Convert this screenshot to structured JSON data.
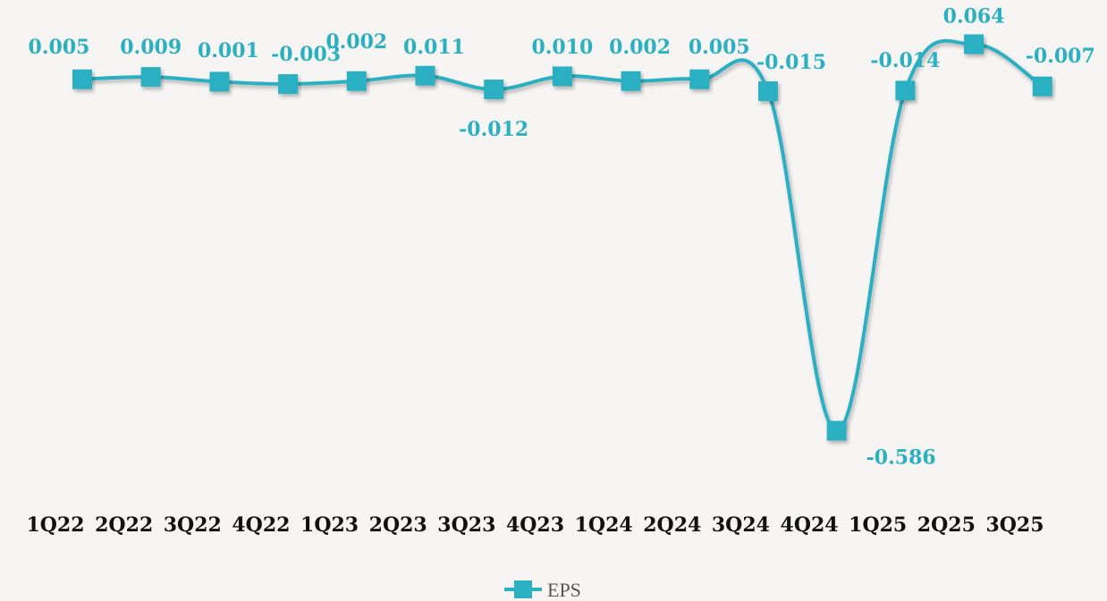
{
  "chart_data": {
    "type": "line",
    "categories": [
      "1Q22",
      "2Q22",
      "3Q22",
      "4Q22",
      "1Q23",
      "2Q23",
      "3Q23",
      "4Q23",
      "1Q24",
      "2Q24",
      "3Q24",
      "4Q24",
      "1Q25",
      "2Q25",
      "3Q25"
    ],
    "series": [
      {
        "name": "EPS",
        "values": [
          0.005,
          0.009,
          0.001,
          -0.003,
          0.002,
          0.011,
          -0.012,
          0.01,
          0.002,
          0.005,
          -0.015,
          -0.586,
          -0.014,
          0.064,
          -0.007
        ],
        "labels": [
          "0.005",
          "0.009",
          "0.001",
          "-0.003",
          "0.002",
          "0.011",
          "-0.012",
          "0.010",
          "0.002",
          "0.005",
          "-0.015",
          "-0.586",
          "-0.014",
          "0.064",
          "-0.007"
        ]
      }
    ],
    "smooth": true,
    "marker": "square",
    "legend_position": "bottom",
    "grid": false,
    "ylim": [
      -0.59,
      0.07
    ],
    "colors": {
      "series": "#2bb0c2",
      "background": "#f6f5f4",
      "tick_text": "#111111",
      "legend_text": "#555555"
    }
  }
}
